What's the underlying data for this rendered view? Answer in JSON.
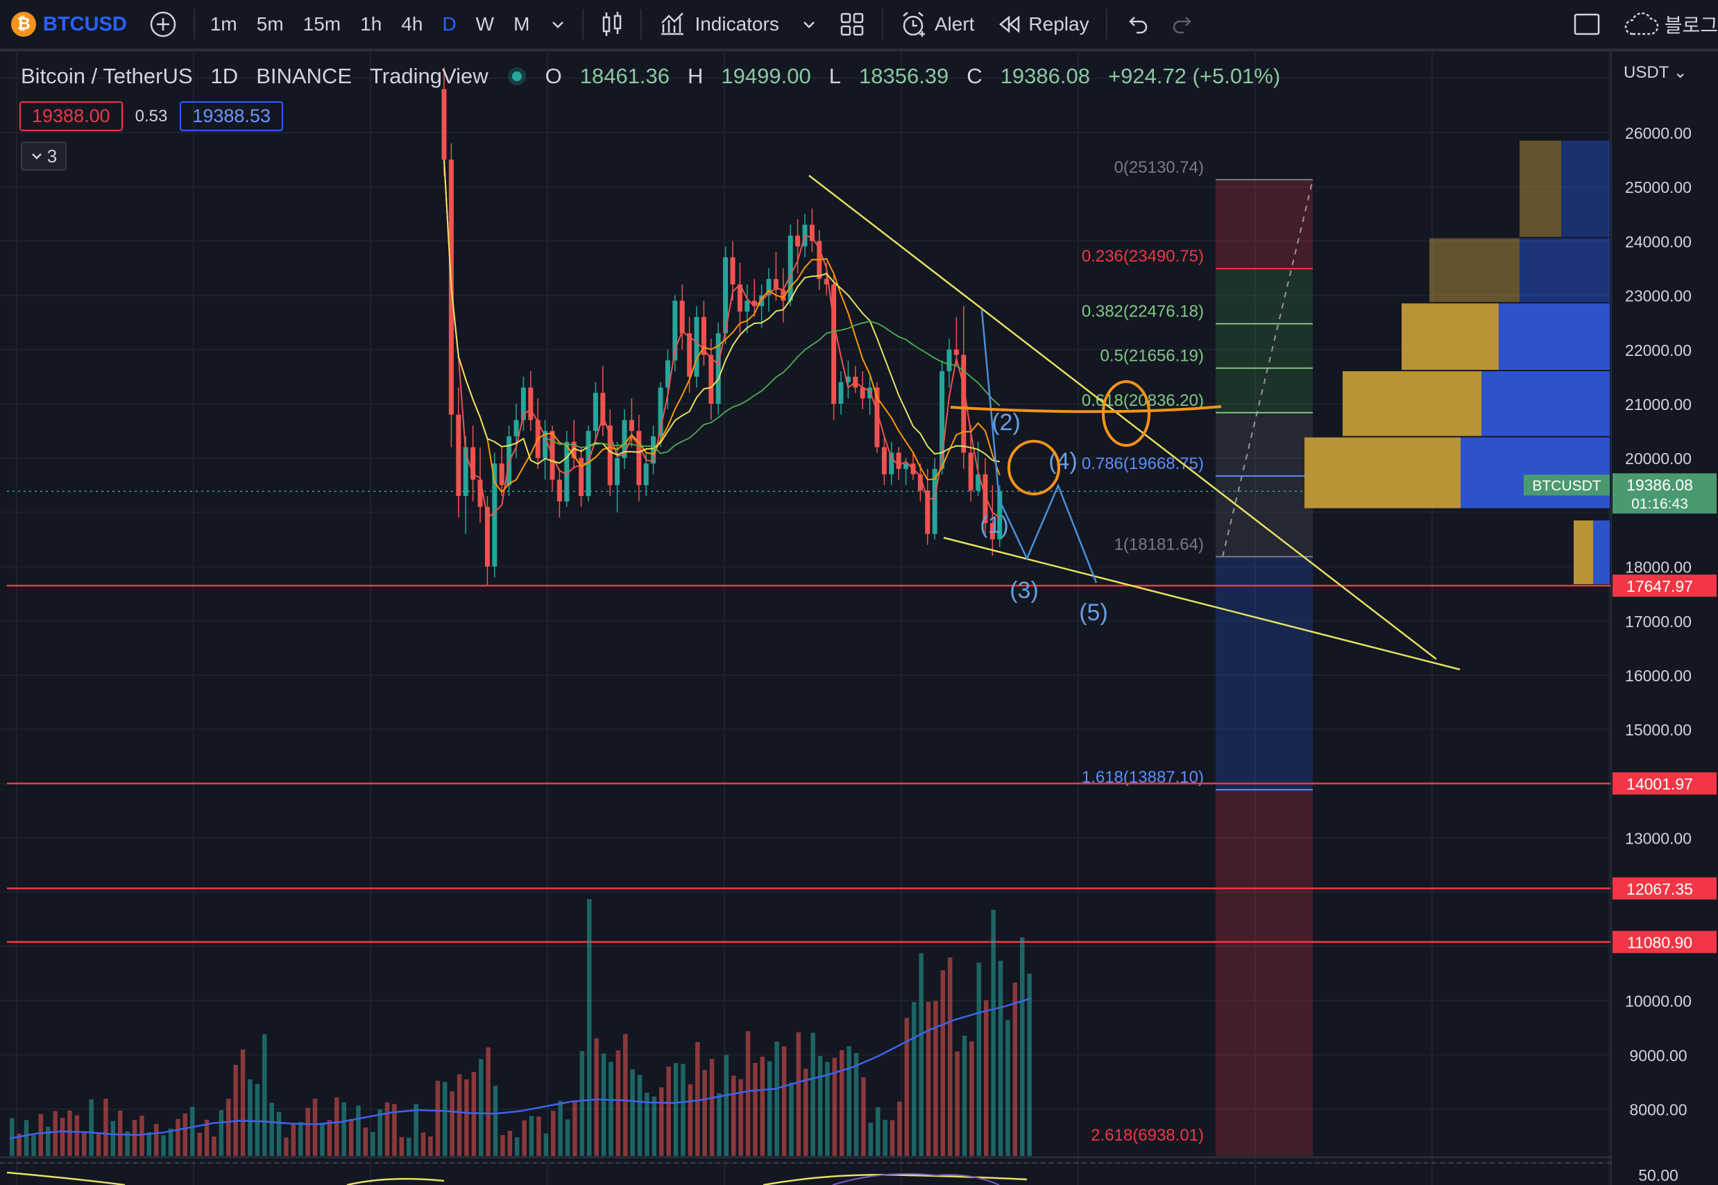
{
  "toolbar": {
    "symbol": "BTCUSD",
    "timeframes": [
      "1m",
      "5m",
      "15m",
      "1h",
      "4h",
      "D",
      "W",
      "M"
    ],
    "active_timeframe": "D",
    "indicators_label": "Indicators",
    "alert_label": "Alert",
    "replay_label": "Replay",
    "cloud_label": "블로그"
  },
  "legend": {
    "title": "Bitcoin / TetherUS",
    "interval": "1D",
    "exchange": "BINANCE",
    "source": "TradingView",
    "open_k": "O",
    "open": "18461.36",
    "high_k": "H",
    "high": "19499.00",
    "low_k": "L",
    "low": "18356.39",
    "close_k": "C",
    "close": "19386.08",
    "change": "+924.72 (+5.01%)",
    "bid": "19388.00",
    "spread": "0.53",
    "ask": "19388.53",
    "indicator_count": "3"
  },
  "price_axis": {
    "currency": "USDT",
    "ticks": [
      "26000.00",
      "25000.00",
      "24000.00",
      "23000.00",
      "22000.00",
      "21000.00",
      "20000.00",
      "18000.00",
      "17000.00",
      "16000.00",
      "15000.00",
      "13000.00",
      "10000.00",
      "9000.00",
      "8000.00",
      "50.00"
    ],
    "current_symbol": "BTCUSDT",
    "current_price": "19386.08",
    "countdown": "01:16:43",
    "hline_labels": [
      "17647.97",
      "14001.97",
      "12067.35",
      "11080.90"
    ]
  },
  "fib_labels": [
    "0(25130.74)",
    "0.236(23490.75)",
    "0.382(22476.18)",
    "0.5(21656.19)",
    "0.618(20836.20)",
    "0.786(19668.75)",
    "1(18181.64)",
    "1.618(13887.10)",
    "2.618(6938.01)"
  ],
  "wave_labels": [
    "(1)",
    "(2)",
    "(3)",
    "(4)",
    "(5)"
  ],
  "colors": {
    "background": "#131722",
    "up": "#26a69a",
    "down": "#ef5350",
    "fib_red": "#f23645",
    "fib_green": "#81c784",
    "fib_blue": "#5b8ff9",
    "trendline": "#e8e060",
    "orange": "#f7931a",
    "elliott": "#4a90d9"
  },
  "chart_data": {
    "type": "candlestick",
    "series": [
      {
        "name": "ohlc",
        "values": [
          [
            26800,
            27200,
            25200,
            25500
          ],
          [
            25500,
            25800,
            20200,
            20800
          ],
          [
            20800,
            21300,
            18900,
            19300
          ],
          [
            19300,
            20400,
            18600,
            20200
          ],
          [
            20200,
            20600,
            19200,
            19600
          ],
          [
            19600,
            20200,
            18800,
            19100
          ],
          [
            19100,
            19300,
            17650,
            18000
          ],
          [
            18000,
            20100,
            17800,
            19900
          ],
          [
            19900,
            20200,
            19300,
            19500
          ],
          [
            19500,
            20600,
            19300,
            20400
          ],
          [
            20400,
            21000,
            20000,
            20700
          ],
          [
            20700,
            21500,
            20500,
            21300
          ],
          [
            21300,
            21600,
            20500,
            20700
          ],
          [
            20700,
            21100,
            19800,
            20000
          ],
          [
            20000,
            20700,
            19600,
            20500
          ],
          [
            20500,
            20600,
            19400,
            19600
          ],
          [
            19600,
            19800,
            18900,
            19200
          ],
          [
            19200,
            20500,
            19100,
            20300
          ],
          [
            20300,
            20700,
            19800,
            20000
          ],
          [
            20000,
            20200,
            19100,
            19300
          ],
          [
            19300,
            20600,
            19200,
            20500
          ],
          [
            20500,
            21400,
            20300,
            21200
          ],
          [
            21200,
            21700,
            20400,
            20600
          ],
          [
            20600,
            20900,
            19300,
            19500
          ],
          [
            19500,
            20300,
            19000,
            20000
          ],
          [
            20000,
            20900,
            19800,
            20700
          ],
          [
            20700,
            21100,
            20200,
            20500
          ],
          [
            20500,
            20800,
            19200,
            19500
          ],
          [
            19500,
            20100,
            19300,
            19900
          ],
          [
            19900,
            20600,
            19700,
            20400
          ],
          [
            20400,
            21400,
            20200,
            21300
          ],
          [
            21300,
            22000,
            20900,
            21800
          ],
          [
            21800,
            23000,
            21600,
            22900
          ],
          [
            22900,
            23200,
            22000,
            22300
          ],
          [
            22300,
            22600,
            21200,
            21500
          ],
          [
            21500,
            22800,
            21300,
            22600
          ],
          [
            22600,
            22900,
            21700,
            21900
          ],
          [
            21900,
            22200,
            20700,
            21000
          ],
          [
            21000,
            22500,
            20800,
            22300
          ],
          [
            22300,
            23900,
            22100,
            23700
          ],
          [
            23700,
            24000,
            22900,
            23200
          ],
          [
            23200,
            23600,
            22300,
            22700
          ],
          [
            22700,
            23200,
            22300,
            22900
          ],
          [
            22900,
            23300,
            22600,
            22800
          ],
          [
            22800,
            23200,
            22400,
            23000
          ],
          [
            23000,
            23500,
            22700,
            23300
          ],
          [
            23300,
            23800,
            22900,
            23100
          ],
          [
            23100,
            23500,
            22500,
            22900
          ],
          [
            22900,
            24300,
            22800,
            24100
          ],
          [
            24100,
            24400,
            23400,
            23900
          ],
          [
            23900,
            24500,
            23700,
            24300
          ],
          [
            24300,
            24600,
            23800,
            24000
          ],
          [
            24000,
            24200,
            23100,
            23300
          ],
          [
            23300,
            23600,
            23000,
            23200
          ],
          [
            23200,
            23400,
            20700,
            21000
          ],
          [
            21000,
            21600,
            20800,
            21400
          ],
          [
            21400,
            21800,
            21100,
            21500
          ],
          [
            21500,
            21700,
            21200,
            21300
          ],
          [
            21300,
            21600,
            20900,
            21100
          ],
          [
            21100,
            21500,
            20800,
            21300
          ],
          [
            21300,
            21400,
            20100,
            20200
          ],
          [
            20200,
            20400,
            19500,
            19700
          ],
          [
            19700,
            20300,
            19500,
            20100
          ],
          [
            20100,
            20200,
            19600,
            19800
          ],
          [
            19800,
            20000,
            19500,
            19900
          ],
          [
            19900,
            20100,
            19600,
            19700
          ],
          [
            19700,
            19900,
            19200,
            19400
          ],
          [
            19400,
            19800,
            18400,
            18600
          ],
          [
            18600,
            20000,
            18500,
            19800
          ],
          [
            19800,
            21800,
            19700,
            21600
          ],
          [
            21600,
            22200,
            21300,
            22000
          ],
          [
            22000,
            22600,
            21700,
            21900
          ],
          [
            21900,
            22800,
            19800,
            20100
          ],
          [
            20100,
            20600,
            19200,
            19400
          ],
          [
            19400,
            20300,
            19300,
            19700
          ],
          [
            19700,
            20000,
            18600,
            18800
          ],
          [
            18800,
            19500,
            18200,
            18500
          ],
          [
            18500,
            19499,
            18356,
            19386
          ]
        ]
      }
    ],
    "y_axis": {
      "min": 7100,
      "max": 27200
    }
  }
}
